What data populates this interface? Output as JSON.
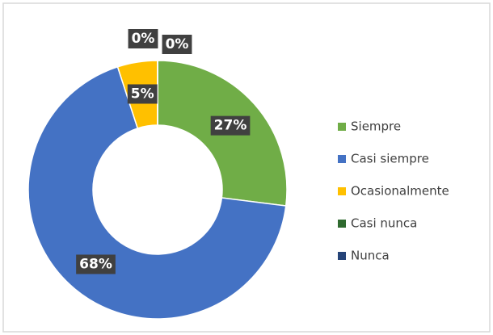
{
  "chart_data": {
    "type": "donut",
    "categories": [
      "Siempre",
      "Casi siempre",
      "Ocasionalmente",
      "Casi nunca",
      "Nunca"
    ],
    "values": [
      27,
      68,
      5,
      0,
      0
    ],
    "value_labels": [
      "27%",
      "68%",
      "5%",
      "0%",
      "0%"
    ],
    "colors": [
      "#70ad47",
      "#4472c4",
      "#ffc000",
      "#2f6a2f",
      "#264478"
    ],
    "legend": "right"
  }
}
